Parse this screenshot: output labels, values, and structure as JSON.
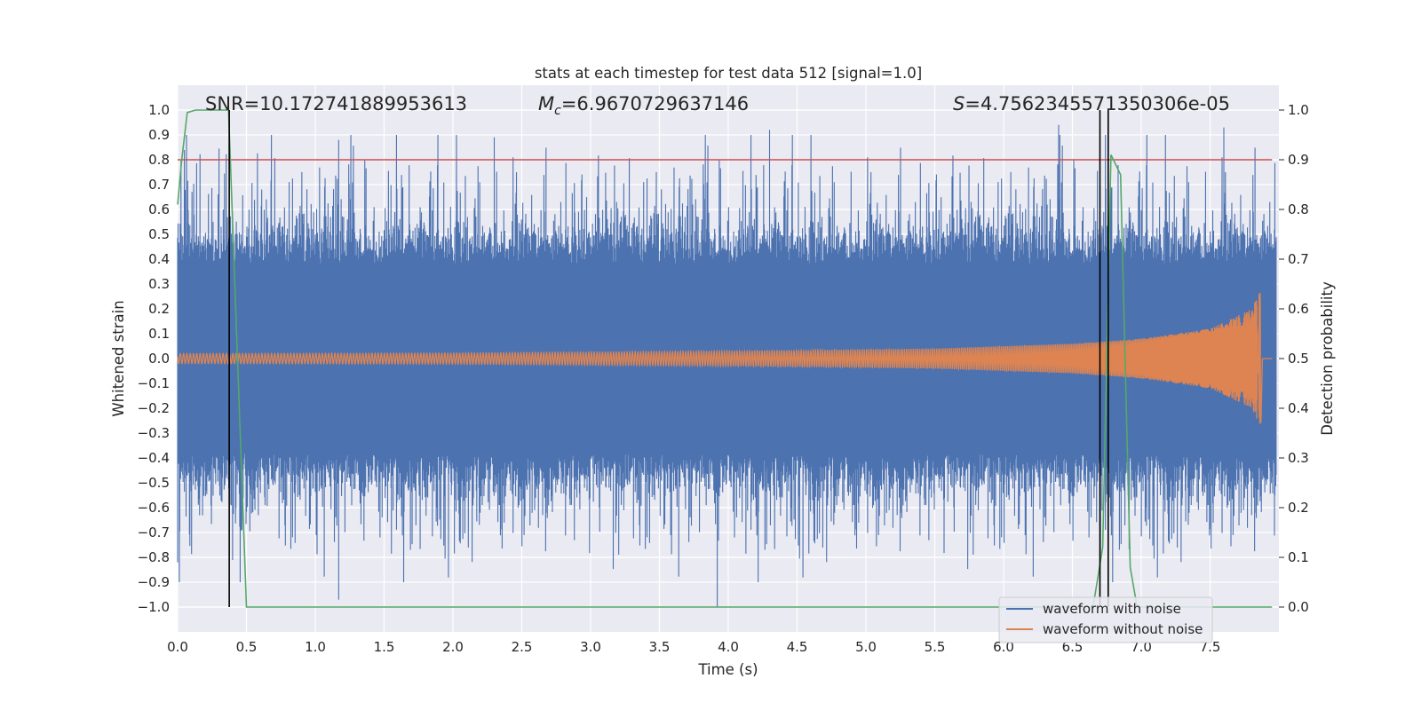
{
  "chart_data": {
    "type": "line",
    "title": "stats at each timestep for test data 512 [signal=1.0]",
    "xlabel": "Time (s)",
    "ylabel": "Whitened strain",
    "ylabel_right": "Detection probability",
    "xlim": [
      0.0,
      8.0
    ],
    "ylim": [
      -1.1,
      1.1
    ],
    "ylim_right": [
      -0.05,
      1.05
    ],
    "x_ticks": [
      "0.0",
      "0.5",
      "1.0",
      "1.5",
      "2.0",
      "2.5",
      "3.0",
      "3.5",
      "4.0",
      "4.5",
      "5.0",
      "5.5",
      "6.0",
      "6.5",
      "7.0",
      "7.5"
    ],
    "y_ticks": [
      "1.0",
      "0.9",
      "0.8",
      "0.7",
      "0.6",
      "0.5",
      "0.4",
      "0.3",
      "0.2",
      "0.1",
      "0.0",
      "-0.1",
      "-0.2",
      "-0.3",
      "-0.4",
      "-0.5",
      "-0.6",
      "-0.7",
      "-0.8",
      "-0.9",
      "-1.0"
    ],
    "y_ticks_right": [
      "1.0",
      "0.9",
      "0.8",
      "0.7",
      "0.6",
      "0.5",
      "0.4",
      "0.3",
      "0.2",
      "0.1",
      "0.0"
    ],
    "annotations": {
      "snr": "SNR=10.172741889953613",
      "mc_symbol": "M",
      "mc_sub": "c",
      "mc_value": "=6.9670729637146",
      "s_symbol": "S",
      "s_value": "=4.756234557135030 6e-05"
    },
    "threshold_right": 0.9,
    "vertical_lines_x": [
      0.375,
      6.7,
      6.76
    ],
    "series": [
      {
        "name": "waveform with noise",
        "color": "#4c72b0",
        "description": "noisy strain, dense band mostly within about ±0.38 with spikes reaching about ±1.0",
        "band_core": 0.38,
        "peak_spikes": [
          {
            "x": 0.0,
            "y": -0.82
          },
          {
            "x": 1.17,
            "y": -0.97
          },
          {
            "x": 1.17,
            "y": 0.88
          },
          {
            "x": 2.3,
            "y": 0.89
          },
          {
            "x": 3.92,
            "y": -1.0
          },
          {
            "x": 4.3,
            "y": 0.92
          },
          {
            "x": 6.4,
            "y": 0.94
          },
          {
            "x": 7.6,
            "y": 0.93
          }
        ]
      },
      {
        "name": "waveform without noise",
        "color": "#dd8452",
        "description": "chirp signal; amplitude grows from about 0.02 to about 0.28 peak near merger at about 7.87 s then ringdown",
        "amplitude_points": [
          {
            "x": 0.0,
            "amp": 0.02
          },
          {
            "x": 2.0,
            "amp": 0.022
          },
          {
            "x": 4.0,
            "amp": 0.03
          },
          {
            "x": 5.5,
            "amp": 0.04
          },
          {
            "x": 6.5,
            "amp": 0.06
          },
          {
            "x": 7.0,
            "amp": 0.08
          },
          {
            "x": 7.5,
            "amp": 0.12
          },
          {
            "x": 7.8,
            "amp": 0.2
          },
          {
            "x": 7.87,
            "amp": 0.28
          },
          {
            "x": 7.88,
            "amp": 0.0
          },
          {
            "x": 7.95,
            "amp": 0.0
          }
        ]
      },
      {
        "name": "detection probability",
        "color": "#55a868",
        "axis": "right",
        "points": [
          {
            "x": 0.0,
            "y": 0.81
          },
          {
            "x": 0.03,
            "y": 0.9
          },
          {
            "x": 0.07,
            "y": 0.995
          },
          {
            "x": 0.13,
            "y": 1.0
          },
          {
            "x": 0.37,
            "y": 1.0
          },
          {
            "x": 0.5,
            "y": 0.0
          },
          {
            "x": 6.65,
            "y": 0.0
          },
          {
            "x": 6.72,
            "y": 0.12
          },
          {
            "x": 6.78,
            "y": 0.91
          },
          {
            "x": 6.85,
            "y": 0.87
          },
          {
            "x": 6.92,
            "y": 0.08
          },
          {
            "x": 6.97,
            "y": 0.0
          },
          {
            "x": 7.95,
            "y": 0.0
          }
        ]
      },
      {
        "name": "threshold",
        "color": "#c44e52",
        "axis": "right",
        "value": 0.9
      }
    ],
    "legend": {
      "position": "lower-right",
      "entries": [
        "waveform with noise",
        "waveform without noise"
      ]
    },
    "grid": true
  }
}
